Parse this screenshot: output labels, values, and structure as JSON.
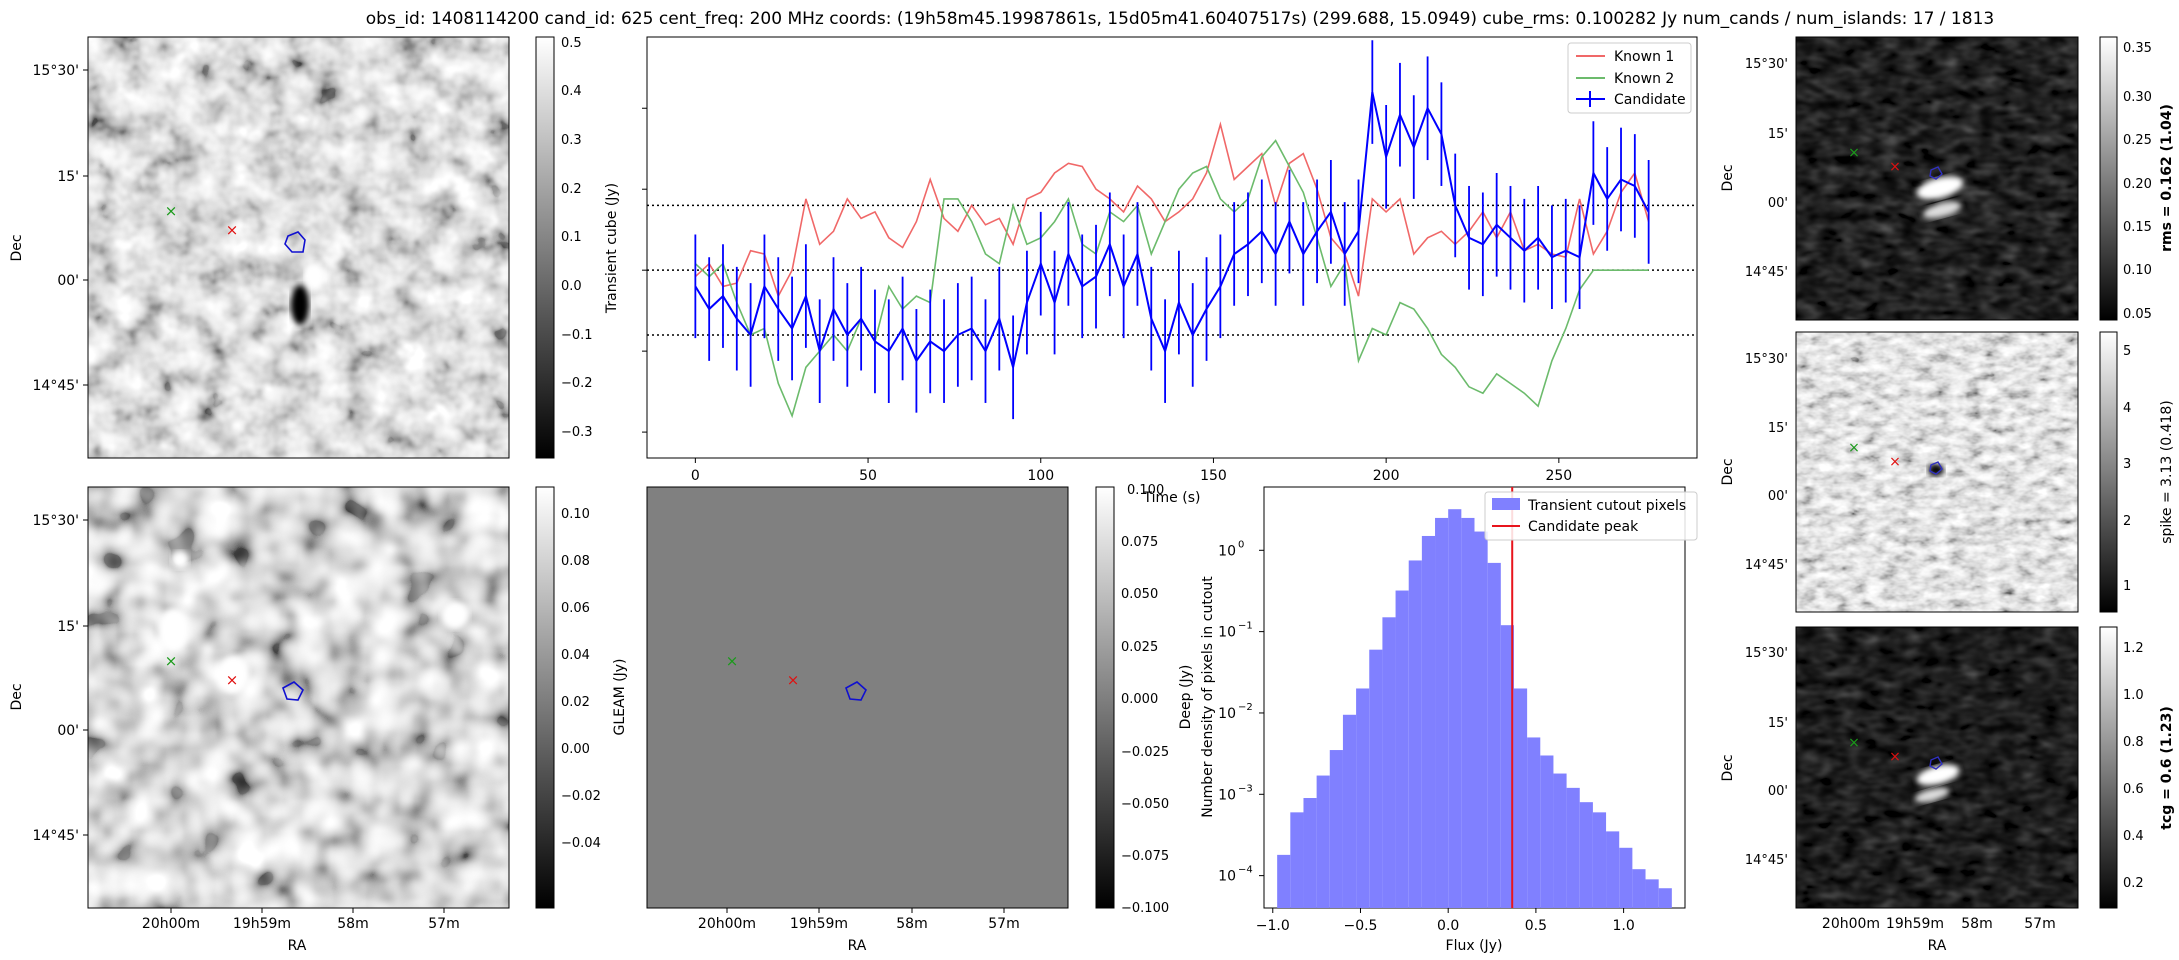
{
  "title": "obs_id: 1408114200 cand_id: 625 cent_freq: 200 MHz coords: (19h58m45.19987861s, 15d05m41.60407517s) (299.688, 15.0949) cube_rms: 0.100282 Jy num_cands / num_islands: 17 / 1813",
  "sky": {
    "xlabel": "RA",
    "ylabel": "Dec",
    "x_ticks": [
      "20h00m",
      "19h59m",
      "58m",
      "57m"
    ],
    "y_ticks": [
      "15°30'",
      "15'",
      "00'",
      "14°45'"
    ],
    "right_y_ticks": [
      "15°30'",
      "15'",
      "00'",
      "14°45'"
    ]
  },
  "panels": {
    "transient": {
      "cbar_label": "Transient cube (Jy)",
      "cbar_ticks": [
        "0.5",
        "0.4",
        "0.3",
        "0.2",
        "0.1",
        "0.0",
        "−0.1",
        "−0.2",
        "−0.3"
      ]
    },
    "deep": {
      "cbar_label": "Deep (Jy)",
      "cbar_ticks": [
        "0.10",
        "0.08",
        "0.06",
        "0.04",
        "0.02",
        "0.00",
        "−0.02",
        "−0.04"
      ]
    },
    "gleam": {
      "cbar_label": "GLEAM (Jy)",
      "cbar_ticks": [
        "0.100",
        "0.075",
        "0.050",
        "0.025",
        "0.000",
        "−0.025",
        "−0.050",
        "−0.075",
        "−0.100"
      ],
      "background": "#808080"
    },
    "rms": {
      "cbar_label": "rms = 0.162 (1.04)",
      "cbar_ticks": [
        "0.35",
        "0.30",
        "0.25",
        "0.20",
        "0.15",
        "0.10",
        "0.05"
      ]
    },
    "spike": {
      "cbar_label": "spike = 3.13 (0.418)",
      "cbar_ticks": [
        "5",
        "4",
        "3",
        "2",
        "1"
      ]
    },
    "tcg": {
      "cbar_label": "tcg = 0.6 (1.23)",
      "cbar_ticks": [
        "1.2",
        "1.0",
        "0.8",
        "0.6",
        "0.4",
        "0.2"
      ]
    }
  },
  "markers": {
    "known1_color": "#d62728",
    "known2_color": "#2ca02c",
    "candidate_color": "#0000ff"
  },
  "chart_data": [
    {
      "type": "line",
      "xlabel": "Time (s)",
      "ylabel": "",
      "xlim": [
        -14,
        290
      ],
      "ylim": [
        -0.58,
        0.72
      ],
      "x_ticks": [
        "0",
        "50",
        "100",
        "150",
        "200",
        "250"
      ],
      "hlines": [
        0.2,
        0.0,
        -0.2
      ],
      "legend": {
        "placement": "top-right",
        "entries": [
          "Known 1",
          "Known 2",
          "Candidate"
        ]
      },
      "x": [
        0,
        4,
        8,
        12,
        16,
        20,
        24,
        28,
        32,
        36,
        40,
        44,
        48,
        52,
        56,
        60,
        64,
        68,
        72,
        76,
        80,
        84,
        88,
        92,
        96,
        100,
        104,
        108,
        112,
        116,
        120,
        124,
        128,
        132,
        136,
        140,
        144,
        148,
        152,
        156,
        160,
        164,
        168,
        172,
        176,
        180,
        184,
        188,
        192,
        196,
        200,
        204,
        208,
        212,
        216,
        220,
        224,
        228,
        232,
        236,
        240,
        244,
        248,
        252,
        256,
        260,
        264,
        268,
        272,
        276
      ],
      "series": [
        {
          "name": "Known 1",
          "color": "#f06868",
          "values": [
            -0.02,
            0.02,
            -0.05,
            -0.04,
            0.06,
            0.05,
            -0.08,
            0.0,
            0.22,
            0.08,
            0.12,
            0.22,
            0.16,
            0.18,
            0.1,
            0.07,
            0.15,
            0.28,
            0.16,
            0.12,
            0.2,
            0.14,
            0.16,
            0.08,
            0.22,
            0.24,
            0.3,
            0.33,
            0.32,
            0.25,
            0.22,
            0.18,
            0.26,
            0.22,
            0.15,
            0.18,
            0.22,
            0.3,
            0.45,
            0.28,
            0.32,
            0.36,
            0.2,
            0.33,
            0.36,
            0.25,
            0.1,
            0.05,
            -0.08,
            0.22,
            0.18,
            0.22,
            0.05,
            0.1,
            0.12,
            0.08,
            0.12,
            0.18,
            0.1,
            0.18,
            0.06,
            0.08,
            0.05,
            0.04,
            0.22,
            0.05,
            0.12,
            0.24,
            0.3,
            0.15
          ]
        },
        {
          "name": "Known 2",
          "color": "#6cbb6c",
          "values": [
            0.02,
            -0.02,
            0.02,
            -0.1,
            -0.2,
            -0.18,
            -0.35,
            -0.45,
            -0.3,
            -0.25,
            -0.2,
            -0.25,
            -0.15,
            -0.22,
            -0.05,
            -0.12,
            -0.08,
            -0.1,
            0.22,
            0.22,
            0.15,
            0.05,
            0.02,
            0.2,
            0.08,
            0.1,
            0.15,
            0.22,
            0.08,
            0.05,
            0.18,
            0.15,
            0.2,
            0.05,
            0.15,
            0.25,
            0.3,
            0.32,
            0.22,
            0.18,
            0.22,
            0.35,
            0.4,
            0.32,
            0.24,
            0.1,
            -0.05,
            0.02,
            -0.28,
            -0.18,
            -0.2,
            -0.1,
            -0.12,
            -0.18,
            -0.26,
            -0.3,
            -0.36,
            -0.38,
            -0.32,
            -0.35,
            -0.38,
            -0.42,
            -0.28,
            -0.18,
            -0.06,
            0.0,
            0.0,
            0.0,
            0.0,
            0.0
          ]
        },
        {
          "name": "Candidate",
          "color": "#0000ff",
          "err": 0.16,
          "values": [
            -0.05,
            -0.12,
            -0.08,
            -0.15,
            -0.2,
            -0.05,
            -0.12,
            -0.18,
            -0.08,
            -0.25,
            -0.12,
            -0.2,
            -0.15,
            -0.22,
            -0.25,
            -0.18,
            -0.28,
            -0.22,
            -0.25,
            -0.2,
            -0.18,
            -0.25,
            -0.15,
            -0.3,
            -0.1,
            0.02,
            -0.1,
            0.05,
            -0.05,
            -0.02,
            0.08,
            -0.05,
            0.05,
            -0.15,
            -0.25,
            -0.1,
            -0.2,
            -0.12,
            -0.05,
            0.05,
            0.08,
            0.12,
            0.05,
            0.15,
            0.05,
            0.12,
            0.18,
            0.05,
            0.12,
            0.55,
            0.35,
            0.48,
            0.38,
            0.5,
            0.42,
            0.2,
            0.1,
            0.08,
            0.14,
            0.1,
            0.06,
            0.1,
            0.04,
            0.06,
            0.04,
            0.3,
            0.22,
            0.28,
            0.26,
            0.18
          ]
        }
      ]
    },
    {
      "type": "bar",
      "xlabel": "Flux (Jy)",
      "ylabel": "Number density of pixels in cutout",
      "yscale": "log",
      "ylim": [
        4e-05,
        6
      ],
      "xlim": [
        -1.05,
        1.35
      ],
      "x_ticks": [
        "−1.0",
        "−0.5",
        "0.0",
        "0.5",
        "1.0"
      ],
      "y_ticks": [
        "10^0",
        "10^-1",
        "10^-2",
        "10^-3",
        "10^-4"
      ],
      "bin_edges": [
        -0.975,
        -0.9,
        -0.825,
        -0.75,
        -0.675,
        -0.6,
        -0.525,
        -0.45,
        -0.375,
        -0.3,
        -0.225,
        -0.15,
        -0.075,
        0.0,
        0.075,
        0.15,
        0.225,
        0.3,
        0.375,
        0.45,
        0.525,
        0.6,
        0.675,
        0.75,
        0.825,
        0.9,
        0.975,
        1.05,
        1.125,
        1.2,
        1.275
      ],
      "values": [
        0.00018,
        0.0006,
        0.0009,
        0.0017,
        0.0035,
        0.0095,
        0.02,
        0.06,
        0.15,
        0.32,
        0.75,
        1.5,
        2.5,
        3.2,
        2.5,
        1.7,
        0.7,
        0.12,
        0.02,
        0.005,
        0.003,
        0.0018,
        0.0012,
        0.0008,
        0.0006,
        0.00035,
        0.00022,
        0.00012,
        9e-05,
        7e-05
      ],
      "vline": 0.365,
      "legend": {
        "placement": "top-right",
        "entries": [
          "Transient cutout pixels",
          "Candidate peak"
        ]
      },
      "bar_color": "#8080ff",
      "vline_color": "#e8141c"
    }
  ]
}
